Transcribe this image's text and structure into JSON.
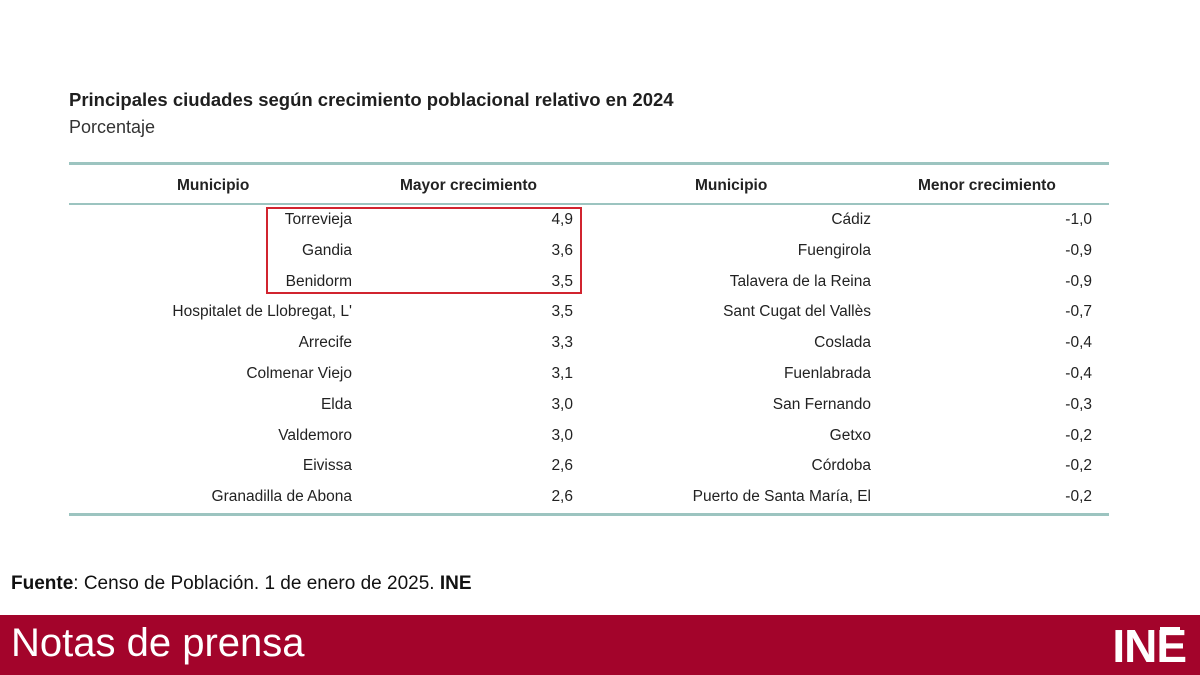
{
  "header": {
    "title": "Principales ciudades según crecimiento poblacional relativo en 2024",
    "subtitle": "Porcentaje"
  },
  "table": {
    "columns": [
      "Municipio",
      "Mayor crecimiento",
      "Municipio",
      "Menor crecimiento"
    ],
    "rows": [
      [
        "Torrevieja",
        "4,9",
        "Cádiz",
        "-1,0"
      ],
      [
        "Gandia",
        "3,6",
        "Fuengirola",
        "-0,9"
      ],
      [
        "Benidorm",
        "3,5",
        "Talavera de la Reina",
        "-0,9"
      ],
      [
        "Hospitalet de Llobregat, L'",
        "3,5",
        "Sant Cugat del Vallès",
        "-0,7"
      ],
      [
        "Arrecife",
        "3,3",
        "Coslada",
        "-0,4"
      ],
      [
        "Colmenar Viejo",
        "3,1",
        "Fuenlabrada",
        "-0,4"
      ],
      [
        "Elda",
        "3,0",
        "San Fernando",
        "-0,3"
      ],
      [
        "Valdemoro",
        "3,0",
        "Getxo",
        "-0,2"
      ],
      [
        "Eivissa",
        "2,6",
        "Córdoba",
        "-0,2"
      ],
      [
        "Granadilla de Abona",
        "2,6",
        "Puerto de Santa María, El",
        "-0,2"
      ]
    ],
    "highlight_color": "#d1242f",
    "rule_color": "#9cc4c0"
  },
  "source": {
    "label": "Fuente",
    "text": ": Censo de Población. 1 de enero de 2025. ",
    "org": "INE"
  },
  "footer": {
    "title": "Notas de prensa",
    "logo": "INE",
    "background": "#a3042b"
  }
}
